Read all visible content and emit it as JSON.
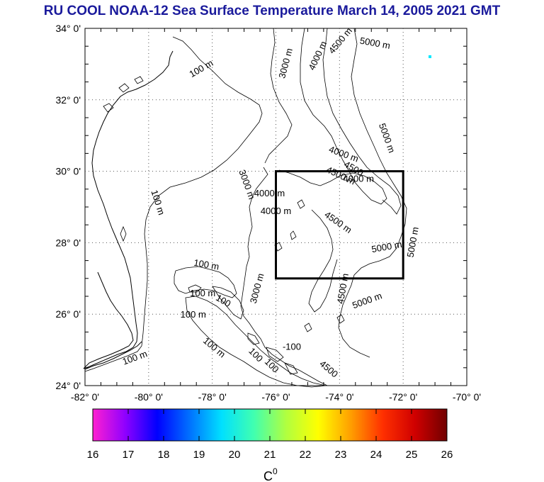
{
  "title": "RU COOL  NOAA-12 Sea Surface Temperature March 14, 2005 2021 GMT",
  "map": {
    "lat_labels": [
      "34° 0'",
      "32° 0'",
      "30° 0'",
      "28° 0'",
      "26° 0'",
      "24° 0'"
    ],
    "lon_labels": [
      "-82° 0'",
      "-80° 0'",
      "-78° 0'",
      "-76° 0'",
      "-74° 0'",
      "-72° 0'",
      "-70° 0'"
    ],
    "lat_range": [
      24,
      34
    ],
    "lon_range": [
      -82,
      -70
    ],
    "region_box": {
      "lon": [
        -76,
        -72
      ],
      "lat": [
        27,
        30
      ]
    },
    "contour_labels": [
      {
        "text": "100 m",
        "lon": -78.3,
        "lat": 32.8,
        "rot": -30
      },
      {
        "text": "100 m",
        "lon": -79.8,
        "lat": 29.1,
        "rot": 72
      },
      {
        "text": "100 m",
        "lon": -80.4,
        "lat": 24.7,
        "rot": -20
      },
      {
        "text": "100 m",
        "lon": -78.2,
        "lat": 27.3,
        "rot": 10
      },
      {
        "text": "100 m",
        "lon": -78.3,
        "lat": 26.5,
        "rot": 0
      },
      {
        "text": "100 m",
        "lon": -78.6,
        "lat": 25.9,
        "rot": 0
      },
      {
        "text": "100 m",
        "lon": -78.0,
        "lat": 25.0,
        "rot": 40
      },
      {
        "text": "100",
        "lon": -77.7,
        "lat": 26.3,
        "rot": 30
      },
      {
        "text": "100",
        "lon": -76.7,
        "lat": 24.8,
        "rot": 45
      },
      {
        "text": "100",
        "lon": -76.2,
        "lat": 24.5,
        "rot": 45
      },
      {
        "text": "3000 m",
        "lon": -75.6,
        "lat": 33.0,
        "rot": -75
      },
      {
        "text": "3000 m",
        "lon": -77.0,
        "lat": 29.6,
        "rot": 70
      },
      {
        "text": "3000 m",
        "lon": -76.5,
        "lat": 26.7,
        "rot": -75
      },
      {
        "text": "4000 m",
        "lon": -74.6,
        "lat": 33.2,
        "rot": -65
      },
      {
        "text": "4500 m",
        "lon": -73.9,
        "lat": 33.6,
        "rot": -50
      },
      {
        "text": "5000 m",
        "lon": -72.9,
        "lat": 33.5,
        "rot": 10
      },
      {
        "text": "5000 m",
        "lon": -72.6,
        "lat": 30.9,
        "rot": 70
      },
      {
        "text": "4000 m",
        "lon": -73.9,
        "lat": 30.4,
        "rot": 20
      },
      {
        "text": "4500",
        "lon": -73.6,
        "lat": 30.0,
        "rot": 30
      },
      {
        "text": "4500 m",
        "lon": -74.0,
        "lat": 29.8,
        "rot": 25
      },
      {
        "text": "4000 m",
        "lon": -73.4,
        "lat": 29.7,
        "rot": 0
      },
      {
        "text": "4000 m",
        "lon": -76.2,
        "lat": 29.3,
        "rot": 0
      },
      {
        "text": "4000 m",
        "lon": -76.0,
        "lat": 28.8,
        "rot": 0
      },
      {
        "text": "4500 m",
        "lon": -74.1,
        "lat": 28.5,
        "rot": 35
      },
      {
        "text": "5000 m",
        "lon": -72.5,
        "lat": 27.8,
        "rot": -10
      },
      {
        "text": "5000 m",
        "lon": -71.6,
        "lat": 28.0,
        "rot": -80
      },
      {
        "text": "4500 m",
        "lon": -73.8,
        "lat": 26.7,
        "rot": -80
      },
      {
        "text": "5000 m",
        "lon": -73.1,
        "lat": 26.3,
        "rot": -20
      },
      {
        "text": "4500",
        "lon": -74.4,
        "lat": 24.4,
        "rot": 40
      },
      {
        "text": "-100",
        "lon": -75.5,
        "lat": 25.0,
        "rot": 0
      }
    ]
  },
  "colorbar": {
    "ticks": [
      "16",
      "17",
      "18",
      "19",
      "20",
      "21",
      "22",
      "23",
      "24",
      "25",
      "26"
    ],
    "range": [
      16,
      26
    ],
    "unit": "C",
    "unit_superscript": "0",
    "colors": [
      "#ff20d0",
      "#9000ff",
      "#0000ff",
      "#0070ff",
      "#00e0ff",
      "#40ffb0",
      "#b0ff40",
      "#ffff00",
      "#ffa000",
      "#ff3000",
      "#d00000",
      "#700000"
    ]
  }
}
